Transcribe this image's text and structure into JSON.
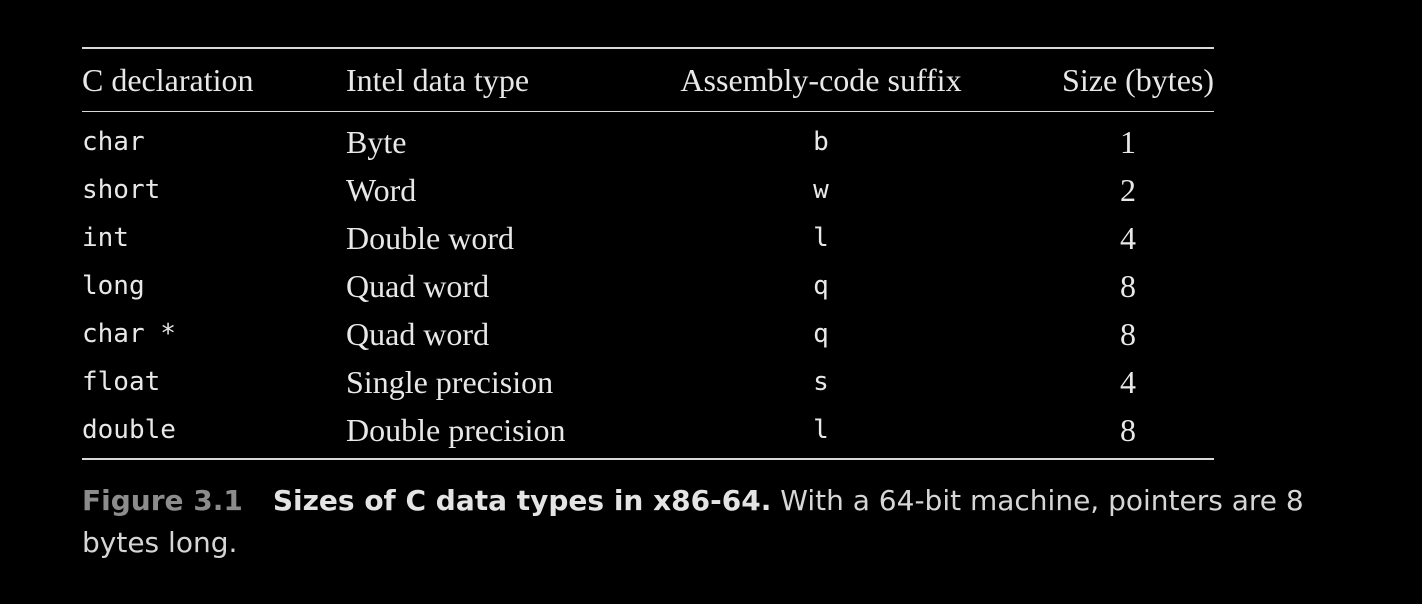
{
  "table": {
    "headers": [
      "C declaration",
      "Intel data type",
      "Assembly-code suffix",
      "Size (bytes)"
    ],
    "rows": [
      {
        "c_declaration": "char",
        "intel_type": "Byte",
        "suffix": "b",
        "size": "1"
      },
      {
        "c_declaration": "short",
        "intel_type": "Word",
        "suffix": "w",
        "size": "2"
      },
      {
        "c_declaration": "int",
        "intel_type": "Double word",
        "suffix": "l",
        "size": "4"
      },
      {
        "c_declaration": "long",
        "intel_type": "Quad word",
        "suffix": "q",
        "size": "8"
      },
      {
        "c_declaration": "char *",
        "intel_type": "Quad word",
        "suffix": "q",
        "size": "8"
      },
      {
        "c_declaration": "float",
        "intel_type": "Single precision",
        "suffix": "s",
        "size": "4"
      },
      {
        "c_declaration": "double",
        "intel_type": "Double precision",
        "suffix": "l",
        "size": "8"
      }
    ]
  },
  "caption": {
    "figure_number": "Figure 3.1",
    "title": "Sizes of C data types in x86-64.",
    "text": " With a 64-bit machine, pointers are 8 bytes long."
  },
  "colors": {
    "background": "#000000",
    "text": "#e8e8e8",
    "figure_number": "#8c8c8c",
    "rules": "#d9d9d9"
  }
}
